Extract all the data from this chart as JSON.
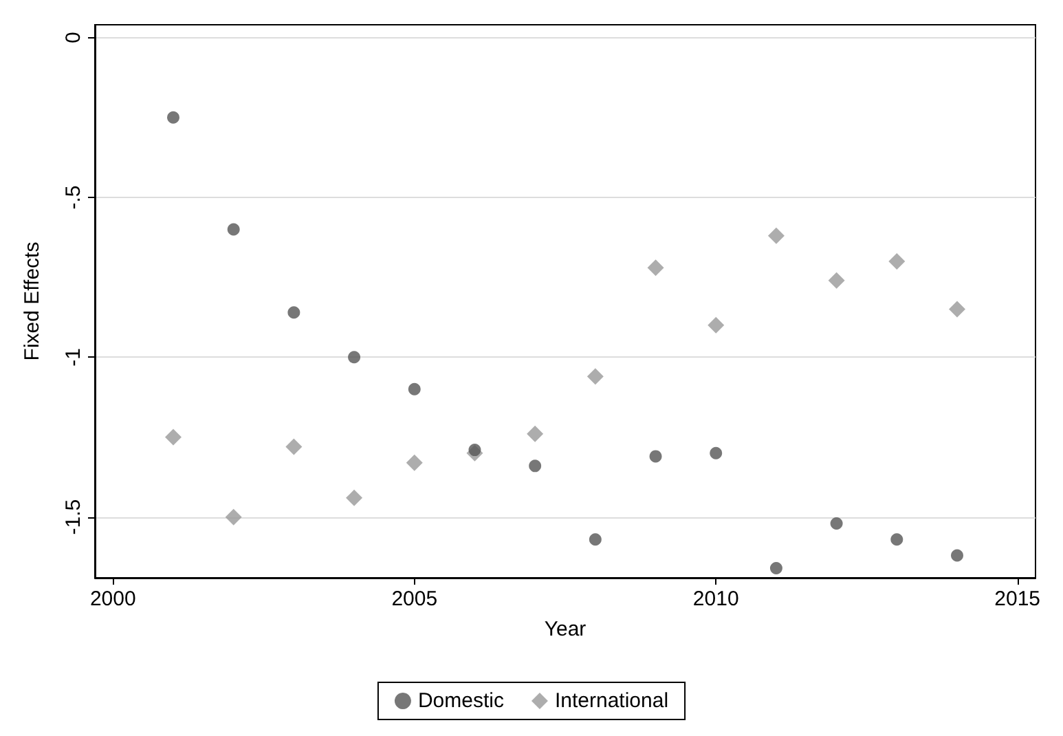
{
  "chart_data": {
    "type": "scatter",
    "xlabel": "Year",
    "ylabel": "Fixed Effects",
    "x": [
      2001,
      2002,
      2003,
      2004,
      2005,
      2006,
      2007,
      2008,
      2009,
      2010,
      2011,
      2012,
      2013,
      2014
    ],
    "series": [
      {
        "name": "Domestic",
        "color": "#555555",
        "marker": "circle",
        "values": [
          -0.25,
          -0.6,
          -0.86,
          -1.0,
          -1.1,
          -1.29,
          -1.34,
          -1.57,
          -1.31,
          -1.3,
          -1.66,
          -1.52,
          -1.57,
          -1.62
        ]
      },
      {
        "name": "International",
        "color": "#999999",
        "marker": "diamond",
        "values": [
          -1.25,
          -1.5,
          -1.28,
          -1.44,
          -1.33,
          -1.3,
          -1.24,
          -1.06,
          -0.72,
          -0.9,
          -0.62,
          -0.76,
          -0.7,
          -0.85
        ]
      }
    ],
    "xlim": [
      1999.7,
      2015.3
    ],
    "xticks": [
      2000,
      2005,
      2010,
      2015
    ],
    "ylim": [
      -1.69,
      0.04
    ],
    "yticks": [
      0,
      {
        "value": -0.5,
        "label": "-.5"
      },
      -1,
      {
        "value": -1.5,
        "label": "-1.5"
      }
    ],
    "grid": "y",
    "legend": "bottom"
  }
}
